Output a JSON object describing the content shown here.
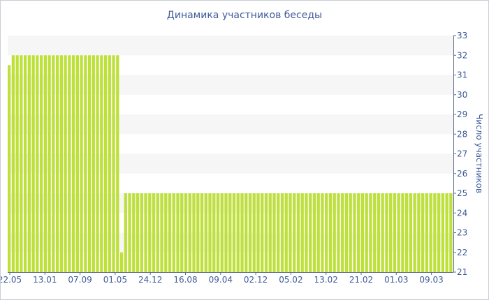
{
  "chart_data": {
    "type": "bar",
    "title": "Динамика участников беседы",
    "xlabel": "",
    "ylabel": "Число участников",
    "ylim": [
      21,
      33
    ],
    "yticks": [
      "21",
      "22",
      "23",
      "24",
      "25",
      "26",
      "27",
      "28",
      "29",
      "30",
      "31",
      "32",
      "33"
    ],
    "xticks": [
      "22.05",
      "13.01",
      "07.09",
      "01.05",
      "24.12",
      "16.08",
      "09.04",
      "02.12",
      "05.02",
      "13.02",
      "21.02",
      "01.03",
      "09.03"
    ],
    "y_axis_position": "right",
    "grid": "alternating horizontal bands",
    "bar_color": "#bde03a",
    "series": [
      {
        "values": [
          31.5,
          32,
          32,
          32,
          32,
          32,
          32,
          32,
          32,
          32,
          32,
          32,
          32,
          32,
          32,
          32,
          32,
          32,
          32,
          32,
          32,
          32,
          32,
          32,
          32,
          32,
          32,
          32,
          22,
          25,
          25,
          25,
          25,
          25,
          25,
          25,
          25,
          25,
          25,
          25,
          25,
          25,
          25,
          25,
          25,
          25,
          25,
          25,
          25,
          25,
          25,
          25,
          25,
          25,
          25,
          25,
          25,
          25,
          25,
          25,
          25,
          25,
          25,
          25,
          25,
          25,
          25,
          25,
          25,
          25,
          25,
          25,
          25,
          25,
          25,
          25,
          25,
          25,
          25,
          25,
          25,
          25,
          25,
          25,
          25,
          25,
          25,
          25,
          25,
          25,
          25,
          25,
          25,
          25,
          25,
          25,
          25,
          25,
          25,
          25,
          25,
          25,
          25,
          25,
          25,
          25,
          25,
          25,
          25,
          25,
          25
        ]
      }
    ]
  }
}
